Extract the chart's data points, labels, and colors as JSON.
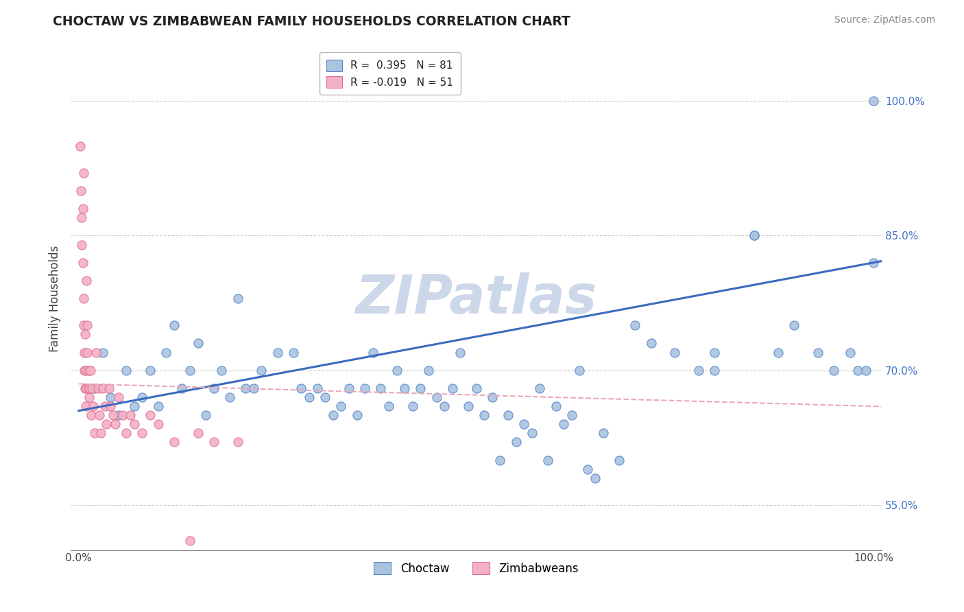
{
  "title": "CHOCTAW VS ZIMBABWEAN FAMILY HOUSEHOLDS CORRELATION CHART",
  "source": "Source: ZipAtlas.com",
  "ylabel": "Family Households",
  "xlim": [
    -0.01,
    1.01
  ],
  "ylim": [
    0.5,
    1.06
  ],
  "ytick_labels_right": [
    "55.0%",
    "70.0%",
    "85.0%",
    "100.0%"
  ],
  "ytick_vals_right": [
    0.55,
    0.7,
    0.85,
    1.0
  ],
  "legend_r1": "R =  0.395   N = 81",
  "legend_r2": "R = -0.019   N = 51",
  "choctaw_color": "#aac4e0",
  "zimbabwean_color": "#f4b0c5",
  "choctaw_edge_color": "#5585c8",
  "zimbabwean_edge_color": "#e07090",
  "choctaw_line_color": "#3a6bbf",
  "zimbabwean_line_color": "#e8a0b8",
  "watermark": "ZIPatlas",
  "watermark_color": "#ccd8ea",
  "choctaw_x": [
    0.02,
    0.03,
    0.04,
    0.05,
    0.06,
    0.07,
    0.08,
    0.09,
    0.1,
    0.11,
    0.12,
    0.13,
    0.14,
    0.15,
    0.16,
    0.17,
    0.18,
    0.19,
    0.2,
    0.21,
    0.22,
    0.23,
    0.25,
    0.27,
    0.28,
    0.29,
    0.3,
    0.31,
    0.32,
    0.33,
    0.34,
    0.35,
    0.36,
    0.37,
    0.38,
    0.39,
    0.4,
    0.41,
    0.42,
    0.43,
    0.44,
    0.45,
    0.46,
    0.47,
    0.48,
    0.49,
    0.5,
    0.51,
    0.52,
    0.53,
    0.54,
    0.55,
    0.56,
    0.57,
    0.58,
    0.59,
    0.6,
    0.61,
    0.62,
    0.63,
    0.64,
    0.65,
    0.66,
    0.68,
    0.7,
    0.72,
    0.75,
    0.78,
    0.8,
    0.85,
    0.88,
    0.9,
    0.93,
    0.95,
    0.97,
    0.98,
    0.99,
    1.0,
    1.0,
    0.85,
    0.8
  ],
  "choctaw_y": [
    0.68,
    0.72,
    0.67,
    0.65,
    0.7,
    0.66,
    0.67,
    0.7,
    0.66,
    0.72,
    0.75,
    0.68,
    0.7,
    0.73,
    0.65,
    0.68,
    0.7,
    0.67,
    0.78,
    0.68,
    0.68,
    0.7,
    0.72,
    0.72,
    0.68,
    0.67,
    0.68,
    0.67,
    0.65,
    0.66,
    0.68,
    0.65,
    0.68,
    0.72,
    0.68,
    0.66,
    0.7,
    0.68,
    0.66,
    0.68,
    0.7,
    0.67,
    0.66,
    0.68,
    0.72,
    0.66,
    0.68,
    0.65,
    0.67,
    0.6,
    0.65,
    0.62,
    0.64,
    0.63,
    0.68,
    0.6,
    0.66,
    0.64,
    0.65,
    0.7,
    0.59,
    0.58,
    0.63,
    0.6,
    0.75,
    0.73,
    0.72,
    0.7,
    0.72,
    0.85,
    0.72,
    0.75,
    0.72,
    0.7,
    0.72,
    0.7,
    0.7,
    0.82,
    1.0,
    0.85,
    0.7
  ],
  "zimbabwean_x": [
    0.002,
    0.003,
    0.004,
    0.004,
    0.005,
    0.005,
    0.006,
    0.006,
    0.006,
    0.007,
    0.007,
    0.008,
    0.008,
    0.009,
    0.009,
    0.01,
    0.01,
    0.011,
    0.011,
    0.012,
    0.012,
    0.013,
    0.014,
    0.015,
    0.016,
    0.017,
    0.018,
    0.02,
    0.022,
    0.024,
    0.026,
    0.028,
    0.03,
    0.033,
    0.035,
    0.038,
    0.04,
    0.043,
    0.046,
    0.05,
    0.055,
    0.06,
    0.065,
    0.07,
    0.08,
    0.09,
    0.1,
    0.12,
    0.15,
    0.17,
    0.2
  ],
  "zimbabwean_y": [
    0.95,
    0.9,
    0.87,
    0.84,
    0.88,
    0.82,
    0.78,
    0.75,
    0.92,
    0.72,
    0.7,
    0.68,
    0.74,
    0.7,
    0.66,
    0.8,
    0.68,
    0.75,
    0.72,
    0.7,
    0.68,
    0.67,
    0.68,
    0.7,
    0.65,
    0.68,
    0.66,
    0.63,
    0.72,
    0.68,
    0.65,
    0.63,
    0.68,
    0.66,
    0.64,
    0.68,
    0.66,
    0.65,
    0.64,
    0.67,
    0.65,
    0.63,
    0.65,
    0.64,
    0.63,
    0.65,
    0.64,
    0.62,
    0.63,
    0.62,
    0.62
  ],
  "zim_outlier_x": [
    0.14
  ],
  "zim_outlier_y": [
    0.51
  ]
}
